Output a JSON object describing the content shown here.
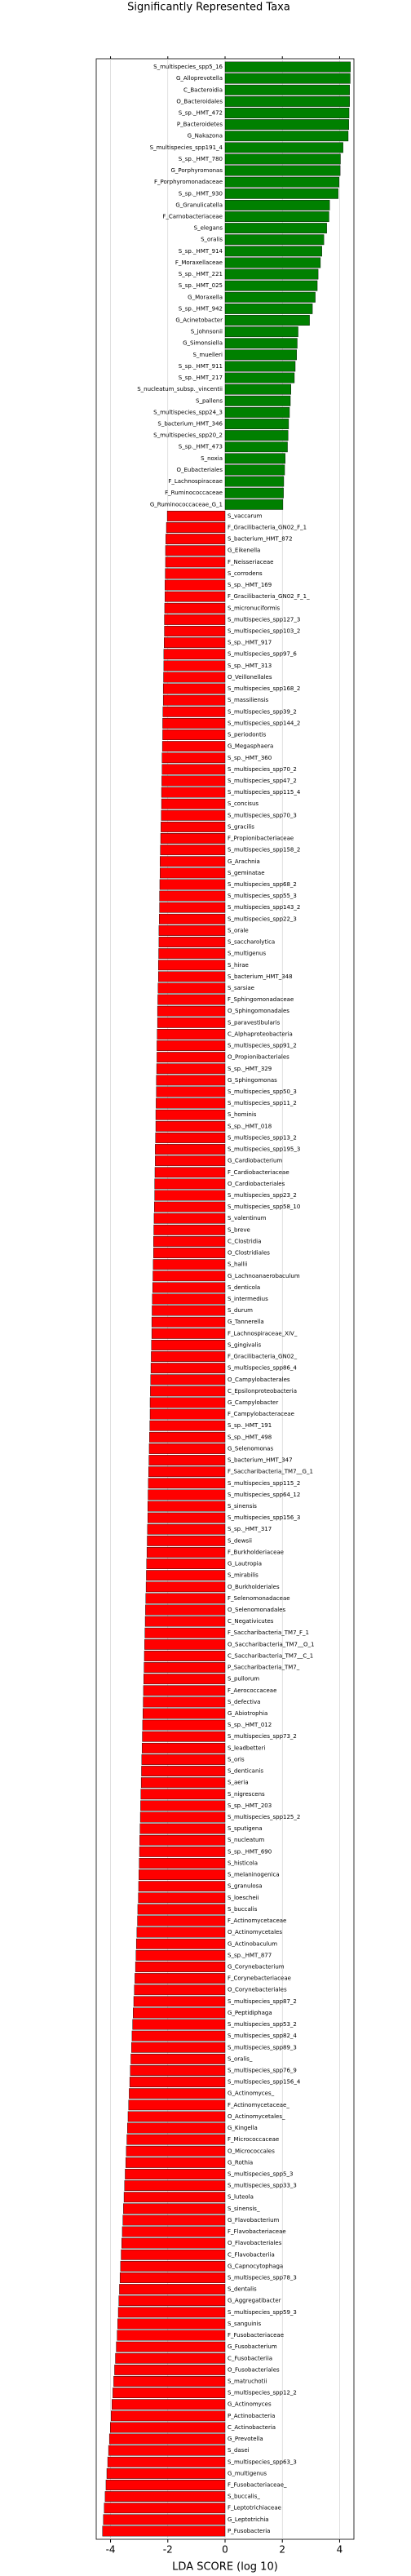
{
  "chart_data": {
    "type": "diverging-bar",
    "title": "Significantly Represented Taxa",
    "x_label": "LDA SCORE (log 10)",
    "xlim": [
      -4.5,
      4.5
    ],
    "xticks": [
      -4,
      -2,
      0,
      2,
      4
    ],
    "grid": true,
    "color_positive": "#008000",
    "color_negative": "#ff0000",
    "categories": [
      "S_multispecies_spp5_16",
      "G_Alloprevotella",
      "C_Bacteroidia",
      "O_Bacteroidales",
      "S_sp._HMT_472",
      "P_Bacteroidetes",
      "G_Nakazona",
      "S_multispecies_spp191_4",
      "S_sp._HMT_780",
      "G_Porphyromonas",
      "F_Porphyromonadaceae",
      "S_sp._HMT_930",
      "G_Granulicatella",
      "F_Carnobacteriaceae",
      "S_elegans",
      "S_oralis",
      "S_sp._HMT_914",
      "F_Moraxellaceae",
      "S_sp._HMT_221",
      "S_sp._HMT_025",
      "G_Moraxella",
      "S_sp._HMT_942",
      "G_Acinetobacter",
      "S_johnsonii",
      "G_Simonsiella",
      "S_muelleri",
      "S_sp._HMT_911",
      "S_sp._HMT_217",
      "S_nucleatum_subsp._vincentii",
      "S_pallens",
      "S_multispecies_spp24_3",
      "S_bacterium_HMT_346",
      "S_multispecies_spp20_2",
      "S_sp._HMT_473",
      "S_noxia",
      "O_Eubacteriales",
      "F_Lachnospiraceae",
      "F_Ruminococcaceae",
      "G_Ruminococcaceae_G_1",
      "S_vaccarum",
      "F_Gracilibacteria_GN02_F_1",
      "S_bacterium_HMT_872",
      "G_Eikenella",
      "F_Neisseriaceae",
      "S_corrodens",
      "S_sp._HMT_169",
      "F_Gracilibacteria_GN02_F_1_",
      "S_micronuciformis",
      "S_multispecies_spp127_3",
      "S_multispecies_spp103_2",
      "S_sp._HMT_917",
      "S_multispecies_spp97_6",
      "S_sp._HMT_313",
      "O_Veillonellales",
      "S_multispecies_spp168_2",
      "S_massiliensis",
      "S_multispecies_spp39_2",
      "S_multispecies_spp144_2",
      "S_periodontis",
      "G_Megasphaera",
      "S_sp._HMT_360",
      "S_multispecies_spp70_2",
      "S_multispecies_spp47_2",
      "S_multispecies_spp115_4",
      "S_concisus",
      "S_multispecies_spp70_3",
      "S_gracilis",
      "F_Propionibacteriaceae",
      "S_multispecies_spp158_2",
      "G_Arachnia",
      "S_geminatae",
      "S_multispecies_spp68_2",
      "S_multispecies_spp55_3",
      "S_multispecies_spp143_2",
      "S_multispecies_spp22_3",
      "S_orale",
      "S_saccharolytica",
      "S_multigenus",
      "S_hirae",
      "S_bacterium_HMT_348",
      "S_sarsiae",
      "F_Sphingomonadaceae",
      "O_Sphingomonadales",
      "S_paravestibularis",
      "C_Alphaproteobacteria",
      "S_multispecies_spp91_2",
      "O_Propionibacteriales",
      "S_sp._HMT_329",
      "G_Sphingomonas",
      "S_multispecies_spp50_3",
      "S_multispecies_spp11_2",
      "S_hominis",
      "S_sp._HMT_018",
      "S_multispecies_spp13_2",
      "S_multispecies_spp195_3",
      "G_Cardiobacterium",
      "F_Cardiobacteriaceae",
      "O_Cardiobacteriales",
      "S_multispecies_spp23_2",
      "S_multispecies_spp58_10",
      "S_valentinum",
      "S_breve",
      "C_Clostridia",
      "O_Clostridiales",
      "S_hallii",
      "G_Lachnoanaerobaculum",
      "S_denticola",
      "S_intermedius",
      "S_durum",
      "G_Tannerella",
      "F_Lachnospiraceae_XIV_",
      "S_gingivalis",
      "F_Gracilibacteria_GN02_",
      "S_multispecies_spp86_4",
      "O_Campylobacterales",
      "C_Epsilonproteobacteria",
      "G_Campylobacter",
      "F_Campylobacteraceae",
      "S_sp._HMT_191",
      "S_sp._HMT_498",
      "G_Selenomonas",
      "S_bacterium_HMT_347",
      "F_Saccharibacteria_TM7__G_1",
      "S_multispecies_spp115_2",
      "S_multispecies_spp64_12",
      "S_sinensis",
      "S_multispecies_spp156_3",
      "S_sp._HMT_317",
      "S_dewsii",
      "F_Burkholderiaceae",
      "G_Lautropia",
      "S_mirabilis",
      "O_Burkholderiales",
      "F_Selenomonadaceae",
      "O_Selenomonadales",
      "C_Negativicutes",
      "F_Saccharibacteria_TM7_F_1",
      "O_Saccharibacteria_TM7__O_1",
      "C_Saccharibacteria_TM7__C_1",
      "P_Saccharibacteria_TM7_",
      "S_pullorum",
      "F_Aerococcaceae",
      "S_defectiva",
      "G_Abiotrophia",
      "S_sp._HMT_012",
      "S_multispecies_spp73_2",
      "S_leadbetteri",
      "S_oris",
      "S_denticanis",
      "S_aeria",
      "S_nigrescens",
      "S_sp._HMT_203",
      "S_multispecies_spp125_2",
      "S_sputigena",
      "S_nucleatum",
      "S_sp._HMT_690",
      "S_histicola",
      "S_melaninogenica",
      "S_granulosa",
      "S_loescheii",
      "S_buccalis",
      "F_Actinomycetaceae",
      "O_Actinomycetales",
      "G_Actinobaculum",
      "S_sp._HMT_877",
      "G_Corynebacterium",
      "F_Corynebacteriaceae",
      "O_Corynebacteriales",
      "S_multispecies_spp87_2",
      "G_Peptidiphaga",
      "S_multispecies_spp53_2",
      "S_multispecies_spp82_4",
      "S_multispecies_spp89_3",
      "S_oralis_",
      "S_multispecies_spp76_9",
      "S_multispecies_spp156_4",
      "G_Actinomyces_",
      "F_Actinomycetaceae_",
      "O_Actinomycetales_",
      "G_Kingella",
      "F_Micrococcaceae",
      "O_Micrococcales",
      "G_Rothia",
      "S_multispecies_spp5_3",
      "S_multispecies_spp33_3",
      "S_luteola",
      "S_sinensis_",
      "G_Flavobacterium",
      "F_Flavobacteriaceae",
      "O_Flavobacteriales",
      "C_Flavobacteriia",
      "G_Capnocytophaga",
      "S_multispecies_spp78_3",
      "S_dentalis",
      "G_Aggregatibacter",
      "S_multispecies_spp59_3",
      "S_sanguinis",
      "F_Fusobacteriaceae",
      "G_Fusobacterium",
      "C_Fusobacteriia",
      "O_Fusobacteriales",
      "S_matruchotii",
      "S_multispecies_spp12_2",
      "G_Actinomyces",
      "P_Actinobacteria",
      "C_Actinobacteria",
      "G_Prevotella",
      "S_dasei",
      "S_multispecies_spp63_3",
      "G_multigenus",
      "F_Fusobacteriaceae_",
      "S_buccalis_",
      "F_Leptotrichiaceae",
      "G_Leptotrichia",
      "P_Fusobacteria"
    ],
    "values": [
      4.38,
      4.37,
      4.35,
      4.35,
      4.33,
      4.32,
      4.3,
      4.12,
      4.03,
      4.02,
      3.98,
      3.95,
      3.65,
      3.63,
      3.55,
      3.45,
      3.38,
      3.33,
      3.25,
      3.22,
      3.15,
      3.05,
      2.95,
      2.55,
      2.52,
      2.5,
      2.45,
      2.42,
      2.3,
      2.28,
      2.25,
      2.22,
      2.2,
      2.18,
      2.1,
      2.08,
      2.05,
      2.04,
      2.02,
      -2.02,
      -2.05,
      -2.07,
      -2.08,
      -2.08,
      -2.09,
      -2.1,
      -2.1,
      -2.11,
      -2.12,
      -2.12,
      -2.13,
      -2.14,
      -2.14,
      -2.15,
      -2.16,
      -2.16,
      -2.17,
      -2.18,
      -2.18,
      -2.19,
      -2.2,
      -2.2,
      -2.21,
      -2.22,
      -2.22,
      -2.23,
      -2.24,
      -2.25,
      -2.26,
      -2.27,
      -2.27,
      -2.28,
      -2.29,
      -2.29,
      -2.3,
      -2.31,
      -2.31,
      -2.32,
      -2.33,
      -2.33,
      -2.34,
      -2.35,
      -2.36,
      -2.36,
      -2.37,
      -2.38,
      -2.38,
      -2.39,
      -2.4,
      -2.4,
      -2.41,
      -2.42,
      -2.42,
      -2.43,
      -2.44,
      -2.44,
      -2.45,
      -2.46,
      -2.46,
      -2.47,
      -2.48,
      -2.49,
      -2.5,
      -2.5,
      -2.51,
      -2.52,
      -2.53,
      -2.54,
      -2.55,
      -2.56,
      -2.56,
      -2.57,
      -2.58,
      -2.59,
      -2.6,
      -2.61,
      -2.62,
      -2.62,
      -2.63,
      -2.64,
      -2.65,
      -2.66,
      -2.67,
      -2.68,
      -2.69,
      -2.7,
      -2.7,
      -2.71,
      -2.72,
      -2.73,
      -2.74,
      -2.75,
      -2.76,
      -2.77,
      -2.78,
      -2.79,
      -2.8,
      -2.81,
      -2.82,
      -2.83,
      -2.84,
      -2.85,
      -2.86,
      -2.87,
      -2.88,
      -2.89,
      -2.9,
      -2.91,
      -2.92,
      -2.93,
      -2.94,
      -2.95,
      -2.96,
      -2.97,
      -2.98,
      -2.99,
      -3.0,
      -3.01,
      -3.02,
      -3.03,
      -3.05,
      -3.06,
      -3.08,
      -3.1,
      -3.11,
      -3.13,
      -3.15,
      -3.17,
      -3.19,
      -3.21,
      -3.23,
      -3.25,
      -3.27,
      -3.29,
      -3.31,
      -3.33,
      -3.35,
      -3.37,
      -3.39,
      -3.41,
      -3.43,
      -3.45,
      -3.47,
      -3.49,
      -3.51,
      -3.53,
      -3.55,
      -3.57,
      -3.59,
      -3.61,
      -3.63,
      -3.65,
      -3.67,
      -3.69,
      -3.71,
      -3.73,
      -3.75,
      -3.77,
      -3.8,
      -3.83,
      -3.86,
      -3.89,
      -3.92,
      -3.95,
      -3.98,
      -4.01,
      -4.04,
      -4.07,
      -4.1,
      -4.13,
      -4.16,
      -4.19,
      -4.22,
      -4.25,
      -4.28
    ]
  }
}
